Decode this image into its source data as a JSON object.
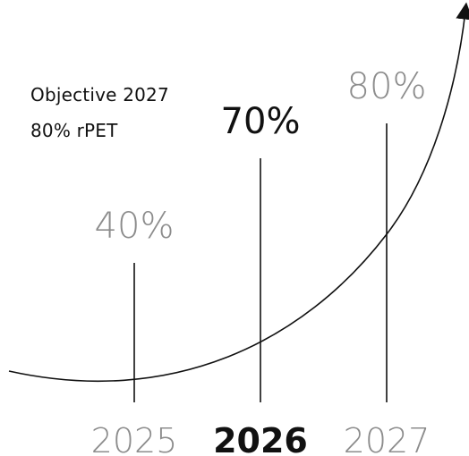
{
  "objective": {
    "line1": "Objective 2027",
    "line2": "80% rPET"
  },
  "chart_data": {
    "type": "line",
    "title": "",
    "xlabel": "",
    "ylabel": "",
    "categories": [
      "2025",
      "2026",
      "2027"
    ],
    "values": [
      40,
      70,
      80
    ],
    "value_labels": [
      "40%",
      "70%",
      "80%"
    ],
    "highlight_index": 1,
    "ylim": [
      0,
      100
    ],
    "grid": false,
    "legend": "none"
  },
  "colors": {
    "line": "#111111",
    "muted_text": "#8c8c8c",
    "strong_text": "#111111"
  }
}
